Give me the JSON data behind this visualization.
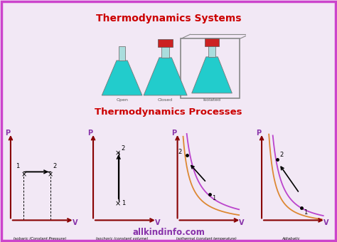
{
  "title1": "Thermodynamics Systems",
  "title2": "Thermodynamics Processes",
  "watermark": "allkindinfo.com",
  "bg_color": "#f2e8f5",
  "border_color": "#cc44cc",
  "title_color": "#cc0000",
  "axis_color": "#880000",
  "purple_label_color": "#8833aa",
  "graph_labels": [
    "Isobaric (Constant Pressure)",
    "Isochoric (constant volume)",
    "Isothermal (constant temperature)",
    "Adiabatic"
  ],
  "curve_purple": "#bb44cc",
  "curve_orange": "#dd8833",
  "flask_bg": "#d8eef8",
  "flask_color": "#22cccc",
  "flask_stopper": "#cc2222"
}
